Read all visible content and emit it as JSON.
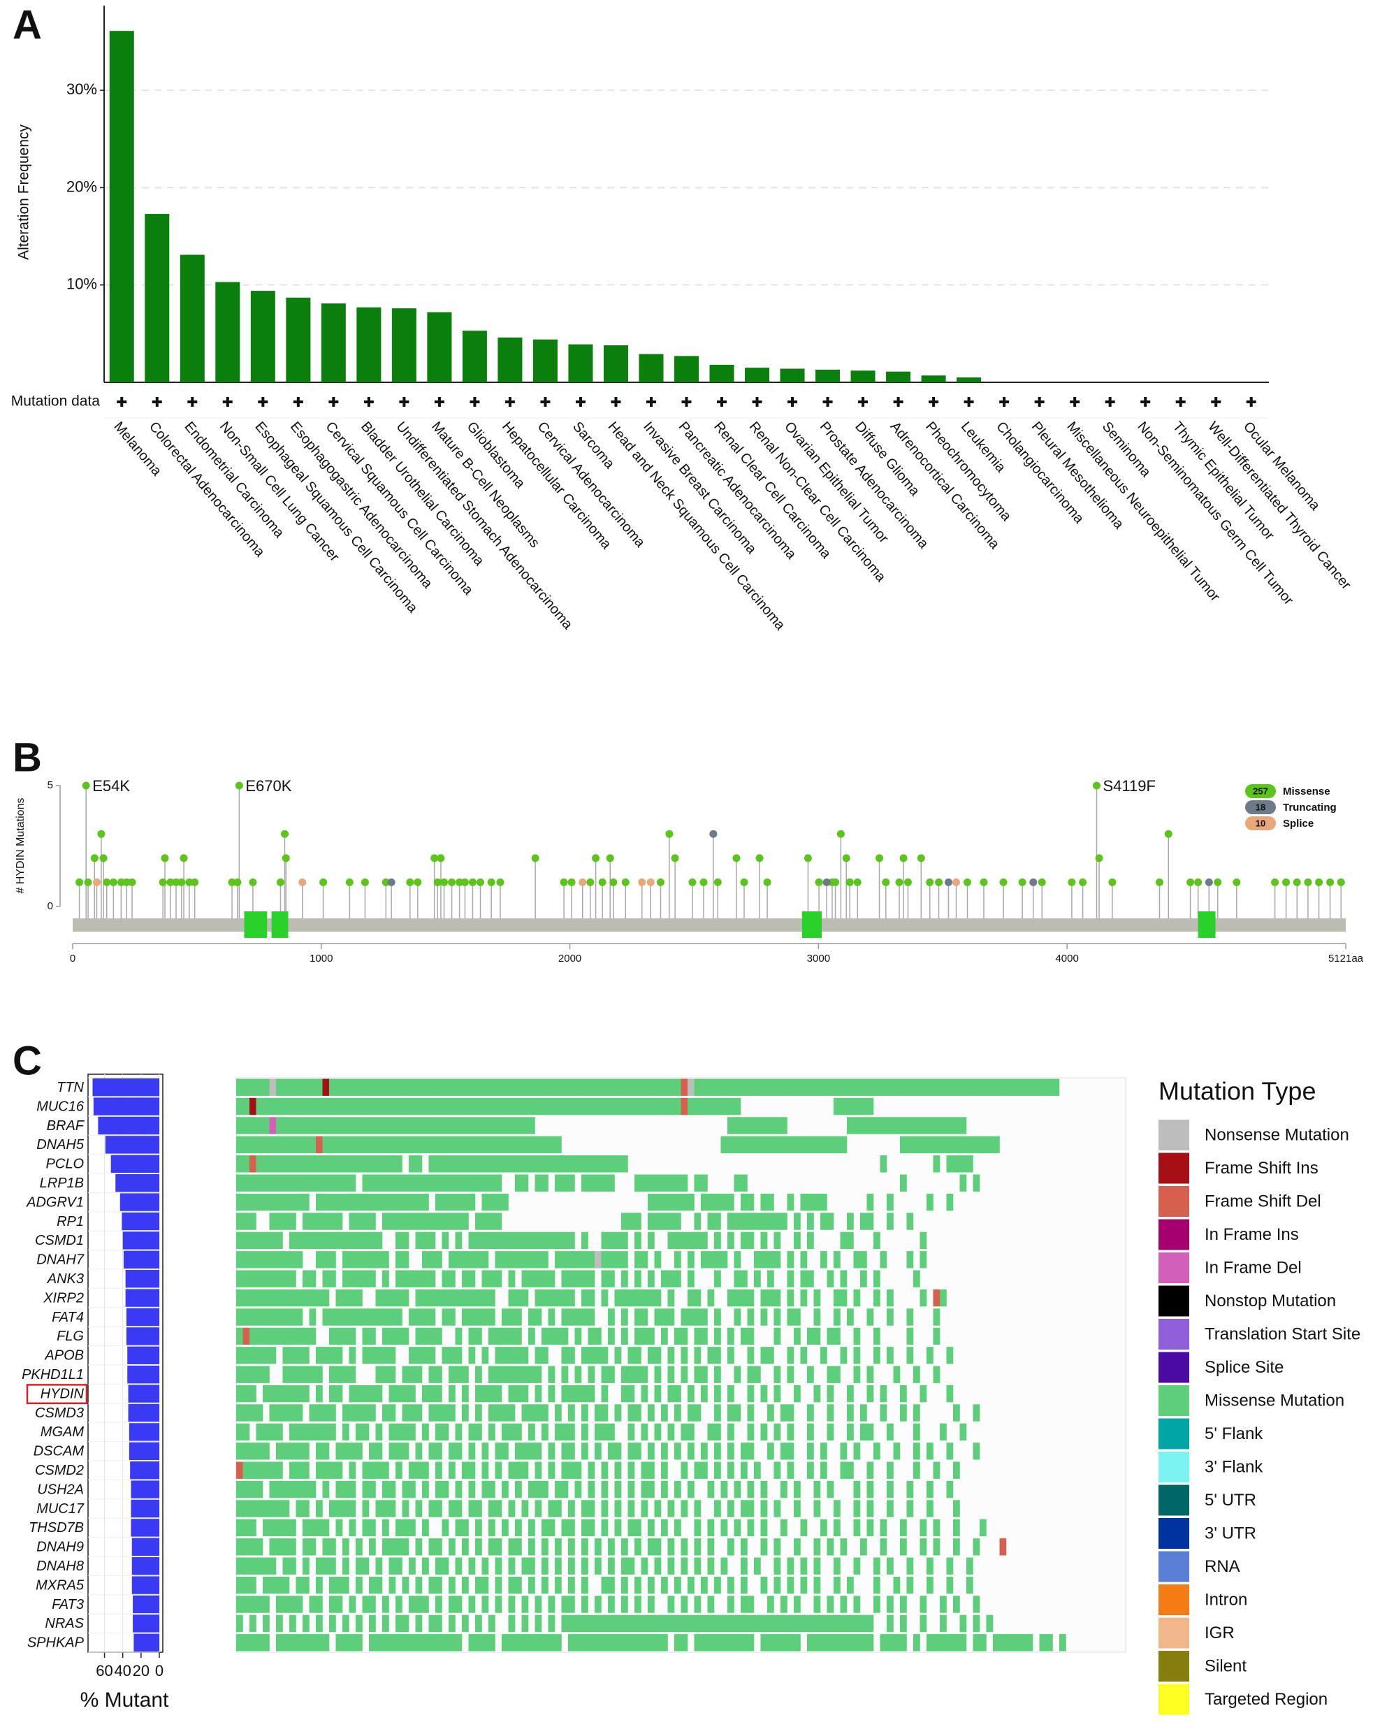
{
  "chart_data": [
    {
      "type": "bar",
      "panel_label": "A",
      "ylabel": "Alteration Frequency",
      "row_label": "Mutation data",
      "categories": [
        "Melanoma",
        "Colorectal Adenocarcinoma",
        "Endometrial Carcinoma",
        "Non-Small Cell Lung Cancer",
        "Esophageal Squamous Cell Carcinoma",
        "Esophagogastric Adenocarcinoma",
        "Cervical Squamous Cell Carcinoma",
        "Bladder Urothelial Carcinoma",
        "Undifferentiated Stomach Adenocarcinoma",
        "Mature B-Cell Neoplasms",
        "Glioblastoma",
        "Hepatocellular Carcinoma",
        "Cervical Adenocarcinoma",
        "Sarcoma",
        "Head and Neck Squamous Cell Carcinoma",
        "Invasive Breast Carcinoma",
        "Pancreatic Adenocarcinoma",
        "Renal Clear Cell Carcinoma",
        "Renal Non-Clear Cell Carcinoma",
        "Ovarian Epithelial Tumor",
        "Prostate Adenocarcinoma",
        "Diffuse Glioma",
        "Adrenocortical Carcinoma",
        "Pheochromocytoma",
        "Leukemia",
        "Cholangiocarcinoma",
        "Pleural Mesothelioma",
        "Miscellaneous Neuroepithelial Tumor",
        "Seminoma",
        "Non-Seminomatous Germ Cell Tumor",
        "Thymic Epithelial Tumor",
        "Well-Differentiated Thyroid Cancer",
        "Ocular Melanoma"
      ],
      "values": [
        36.1,
        17.3,
        13.1,
        10.3,
        9.4,
        8.7,
        8.1,
        7.7,
        7.6,
        7.2,
        5.3,
        4.6,
        4.4,
        3.9,
        3.8,
        2.9,
        2.7,
        1.8,
        1.5,
        1.4,
        1.3,
        1.2,
        1.1,
        0.7,
        0.5,
        0,
        0,
        0,
        0,
        0,
        0,
        0,
        0
      ],
      "color": "#0b7f0b",
      "ylim": [
        0,
        38.7
      ],
      "yticks": [
        {
          "value": 10,
          "label": "10%"
        },
        {
          "value": 20,
          "label": "20%"
        },
        {
          "value": 30,
          "label": "30%"
        }
      ],
      "grid": true
    },
    {
      "type": "lollipop",
      "panel_label": "B",
      "ylabel": "# HYDIN Mutations",
      "xlim": [
        0,
        5121
      ],
      "ylim": [
        0,
        5
      ],
      "yticks": [
        0,
        5
      ],
      "xticks": [
        0,
        1000,
        2000,
        3000,
        4000,
        {
          "value": 5121,
          "label": "5121aa"
        }
      ],
      "backbone_color": "#bcbcb2",
      "domain_color": "#2bd12b",
      "domains": [
        {
          "start": 690,
          "end": 782
        },
        {
          "start": 800,
          "end": 867
        },
        {
          "start": 2934,
          "end": 3013
        },
        {
          "start": 4527,
          "end": 4597
        }
      ],
      "series": [
        {
          "name": "Missense",
          "count": 257,
          "color": "#5cc51c",
          "x": [
            27,
            54,
            62,
            88,
            115,
            124,
            137,
            164,
            195,
            217,
            239,
            363,
            371,
            393,
            416,
            438,
            447,
            469,
            491,
            641,
            663,
            670,
            725,
            836,
            853,
            858,
            1008,
            1114,
            1176,
            1260,
            1357,
            1388,
            1455,
            1468,
            1481,
            1494,
            1525,
            1556,
            1578,
            1609,
            1640,
            1684,
            1720,
            1861,
            1976,
            2007,
            2082,
            2104,
            2131,
            2162,
            2175,
            2224,
            2365,
            2400,
            2423,
            2493,
            2538,
            2595,
            2670,
            2701,
            2763,
            2794,
            2958,
            3002,
            3055,
            3068,
            3090,
            3112,
            3126,
            3157,
            3245,
            3271,
            3325,
            3342,
            3360,
            3413,
            3448,
            3484,
            3599,
            3665,
            3744,
            3820,
            3899,
            4019,
            4063,
            4119,
            4129,
            4182,
            4372,
            4408,
            4496,
            4527,
            4606,
            4682,
            4836,
            4881,
            4925,
            4969,
            5013,
            5058,
            5102
          ],
          "values": [
            1,
            5,
            1,
            2,
            3,
            2,
            1,
            1,
            1,
            1,
            1,
            1,
            2,
            1,
            1,
            1,
            2,
            1,
            1,
            1,
            1,
            5,
            1,
            1,
            3,
            2,
            1,
            1,
            1,
            1,
            1,
            1,
            2,
            1,
            2,
            1,
            1,
            1,
            1,
            1,
            1,
            1,
            1,
            2,
            1,
            1,
            1,
            2,
            1,
            2,
            1,
            1,
            1,
            3,
            2,
            1,
            1,
            1,
            2,
            1,
            2,
            1,
            2,
            1,
            1,
            1,
            3,
            2,
            1,
            1,
            2,
            1,
            1,
            2,
            1,
            2,
            1,
            1,
            1,
            1,
            1,
            1,
            1,
            1,
            1,
            5,
            2,
            1,
            1,
            3,
            1,
            1,
            1,
            1,
            1,
            1,
            1,
            1,
            1,
            1,
            1
          ]
        },
        {
          "name": "Truncating",
          "count": 18,
          "color": "#6c7a8a",
          "x": [
            1282,
            2577,
            3033,
            3523,
            3864,
            4571
          ],
          "values": [
            1,
            3,
            1,
            1,
            1,
            1
          ]
        },
        {
          "name": "Splice",
          "count": 10,
          "color": "#e9a77c",
          "x": [
            97,
            924,
            2051,
            2290,
            2325,
            3554
          ],
          "values": [
            1,
            1,
            1,
            1,
            1,
            1
          ]
        }
      ],
      "annotations": [
        {
          "text": "E54K",
          "x": 54,
          "y": 5
        },
        {
          "text": "E670K",
          "x": 670,
          "y": 5
        },
        {
          "text": "S4119F",
          "x": 4119,
          "y": 5
        }
      ]
    },
    {
      "type": "oncoplot",
      "panel_label": "C",
      "xlabel": "% Mutant",
      "legend_title": "Mutation Type",
      "genes": [
        "TTN",
        "MUC16",
        "BRAF",
        "DNAH5",
        "PCLO",
        "LRP1B",
        "ADGRV1",
        "RP1",
        "CSMD1",
        "DNAH7",
        "ANK3",
        "XIRP2",
        "FAT4",
        "FLG",
        "APOB",
        "PKHD1L1",
        "HYDIN",
        "CSMD3",
        "MGAM",
        "DSCAM",
        "CSMD2",
        "USH2A",
        "MUC17",
        "THSD7B",
        "DNAH9",
        "DNAH8",
        "MXRA5",
        "FAT3",
        "NRAS",
        "SPHKAP"
      ],
      "values": [
        73,
        72,
        67,
        59,
        53,
        48,
        43,
        41,
        40,
        39,
        37,
        37,
        36,
        36,
        35,
        35,
        34,
        34,
        33,
        33,
        32,
        31,
        31,
        31,
        30,
        30,
        30,
        29,
        29,
        28
      ],
      "color": "#3a3af5",
      "xlim": [
        0,
        78
      ],
      "x_reversed": true,
      "xticks": [
        0,
        20,
        40,
        60
      ],
      "highlight": 16,
      "mutation_types": [
        {
          "name": "Nonsense Mutation",
          "color": "#bdbdbd"
        },
        {
          "name": "Frame Shift Ins",
          "color": "#a50f15"
        },
        {
          "name": "Frame Shift Del",
          "color": "#d6604d"
        },
        {
          "name": "In Frame Ins",
          "color": "#a6006e"
        },
        {
          "name": "In Frame Del",
          "color": "#d25fb9"
        },
        {
          "name": "Nonstop Mutation",
          "color": "#000000"
        },
        {
          "name": "Translation Start Site",
          "color": "#8e5fd6"
        },
        {
          "name": "Splice Site",
          "color": "#4a0aa3"
        },
        {
          "name": "Missense Mutation",
          "color": "#5dcf7a"
        },
        {
          "name": "5' Flank",
          "color": "#00a6a6"
        },
        {
          "name": "3' Flank",
          "color": "#7cf3f3"
        },
        {
          "name": "5' UTR",
          "color": "#006666"
        },
        {
          "name": "3' UTR",
          "color": "#0033a0"
        },
        {
          "name": "RNA",
          "color": "#5b7fd4"
        },
        {
          "name": "Intron",
          "color": "#f57c14"
        },
        {
          "name": "IGR",
          "color": "#f0b888"
        },
        {
          "name": "Silent",
          "color": "#857d0d"
        },
        {
          "name": "Targeted Region",
          "color": "#ffff22"
        }
      ],
      "rows": [
        "8888808888888188888888888888888888888888888888888888888888888888888208888888888888888888888888888888888888888888888888888888",
        "8818888888888888888888888888888888888888888888888888888888888888888288888888..............888888....................",
        "888884888888888888888888888888888888888888888.............................888888888.........888888888888888888........................",
        "8888888888882888888888888888888888888888888888888........................8888888888888888888........888888888888888....",
        "8828888888888888888888888.88.888888888888888888888888888888......................................8.......8.8888....................",
        "888888888888888888.888888888888888888888..88.88.888.88888...88888888.88....88.......................8........8.8....................",
        "88888888888.88888888888888888.888888.8888.....................8888888.88888.88.88..8.8888......8..8.....8..8....................",
        "888..8888.888888.8888.8888888888888.8888..................888.88888..8.88.888888888.8.8.88..8.88..8..8......................",
        "8888888.88888888888888..88.888.8.8.8888888888888888.8..8888.8.8..888888.8.8.88.8.8..8.8....88...8......8.....................",
        "8888888888..888.8888888.88..888.888888.88888888.88888808888.88.8..8.8.8888.8..8888.8.8..8.8..88..8...8.8................",
        "888888888.88.88.88888.8.888888.88.88.888.8.88888.88888.88.8.8.8.888.8...8..88.8.8..8.88..8.8..8.8.....8.....................",
        "88888888888888.8888..88888.888888888888..888.888888.88.8.8888888.8..88.8..8888.888.8.8.8..88.8..8.8....8.28...................",
        "8888888888.8.888888888888.8888.88.88888.888.88.8.88888..8.8.88.888.8888.8..8.8.8.8.88..8..8.8..8..8..8...8.....................",
        "828888888888..8888.88.8888.8888..8.88.88888.8.8888.8.88.8.8.888.8.88.88.8.8.88...8..8.88.88..8..8....8...8....................",
        "888888.8888.8888.8.88888..8888.888.8.8.88888.88..88.8888.8.88.88.8.8.8.88.8..8.88..8.8..8..8.8..8.8..8..8..8..................",
        "88888..888888.8888...888.888.88.888.8.88888888.8.8.8.8.88.8888.8.8.8.88.8..8.88..8.8..8..88..8.8...8..8..8....................",
        "888.8888888.8.88.88888.8888.888.8.8.8888.888.8.8.88888.8..88.8.8.88.8.8.8.8..8.8.8..8..8.8..8..8.8..8..8...8.....................",
        "8888.88888.8888.88888.88.888.8888.8.8.8888.8888.8.8.8.88.8.88.8.8.8.88..8.88.8..8.88..8..8..8.8..8..8.8.....8..8....................",
        "88.8888.8888888.8.88.8.8888.8.88.8.88.8.888.8.8.888.8.888..8.8.8.8.88..88.8..8.8.8.8..8..8..8.88..8...8...8..8.....................",
        "88888.88888.88.8888.88.888.8.88.88.8.8.88.8888.8.88.8.8.88.88.8.8.8.8.8.8.8.88..8.88..8.8..8.8..8..8..8.8..8...8...................",
        "2888888.888.8888.8.8888.8.888.8.8.88.8.8.888.8.8.888.8.8.8.8.88.8..8.88.8.8.8.8..8.8..8.8..88..8..8...8..8..8...................",
        "8888.8888888.8.888.88.88.88.8.88.8.8.88.8.8.888.88.8.8.8.8.8.88.8.8.8..8.8.8.8.8..8.8..8.8...8.8..8..8..8..8...................",
        "88888888.88.8.8888.8.888.8.8.88.88.88.88.8.8.8.88.8.88.8.8.8.8.8.8.8.8..8.8.88.8.8..8..8..8..8.8..8..8..8...8...................",
        "888.88888.8888.8.8.88.8.888.8..8.88.8.8.8.8.8.88.88.88.8.8.88.8.8.8..8.8.8.8.8.8..8..8..8.8..8.8.8..8..8.8..8...8.....................",
        "8888.8888.88.88.8.8.8.8888.8.88.8.8.8.88.88.8.8.8.8.8.8.8.8.8.88.8.8.8.8..8.8..8.8..8..8.8.8..8..8..8..8.8..8..8...2..........",
        "888888.88.8.888.8.88.8.88.8.8.88.8.8.8.8.8.88.8.8.8.8.8.8.88.8.8.8.8.8.8.8..8.8..8.8.8.8..8..8..8.8..8..8..8..8.....................",
        "888.8888.88.8.888.8.88.8.8.8.88.8.8.88.8.88.8.8.8.8.8..88.8.8.8.8.8.8.8.8.8.8..8.8.8.8.8..8.8...8..8.8..8..8..8...........",
        "88888.8888.88.88.8.88.8.8.888.8.88.8.8.8.8.8.8.8.88.8.8.8.8.8.8..8.8.8.8..8.88..8.8.8..8.8.8.8..8.8.8..8..8.8..8.........",
        "8.8.8.8.8.8.8.8.8.8.8.8.88.8.88.8.8.8.8..8.8.8.8.88888888888888888888888888888888888888888888888..8.8..8..8..8.8.8....",
        "88888.88888888.8888.88888888888888.8888.888888888.888888888888888.88.888888888.888888.8888888888.8888.8.888888.88.888888.88.8."
      ]
    }
  ]
}
